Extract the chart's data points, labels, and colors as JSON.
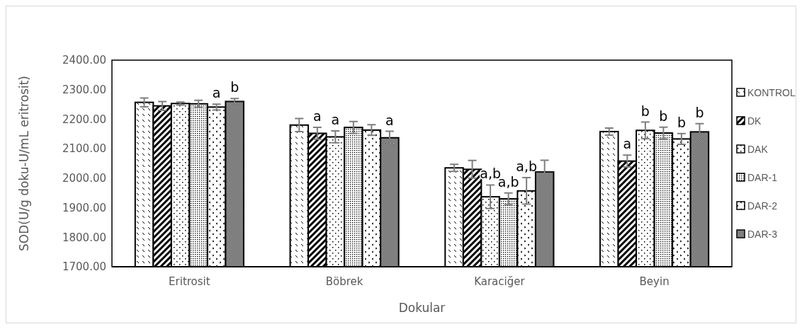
{
  "chart_data": {
    "type": "bar",
    "xlabel": "Dokular",
    "ylabel": "SOD(U/g doku-U/mL eritrosit)",
    "categories": [
      "Eritrosit",
      "Böbrek",
      "Karaciğer",
      "Beyin"
    ],
    "ylim": [
      1700,
      2400
    ],
    "yticks": [
      {
        "value": 1700,
        "label": "1700.00"
      },
      {
        "value": 1800,
        "label": "1800.00"
      },
      {
        "value": 1900,
        "label": "1900.00"
      },
      {
        "value": 2000,
        "label": "2000.00"
      },
      {
        "value": 2100,
        "label": "2100.00"
      },
      {
        "value": 2200,
        "label": "2200.00"
      },
      {
        "value": 2300,
        "label": "2300.00"
      },
      {
        "value": 2400,
        "label": "2400.00"
      }
    ],
    "grid": false,
    "legend": "right",
    "series": [
      {
        "name": "KONTROL",
        "color": "#000000",
        "values": [
          2257,
          2180,
          2035,
          2158
        ],
        "errors": [
          15,
          22,
          12,
          12
        ],
        "value_labels": [
          null,
          null,
          null,
          null
        ]
      },
      {
        "name": "DK",
        "color": "#000000",
        "values": [
          2245,
          2152,
          2030,
          2058
        ],
        "errors": [
          15,
          20,
          30,
          20
        ],
        "value_labels": [
          null,
          "a",
          null,
          "a"
        ]
      },
      {
        "name": "DAK",
        "color": "#000000",
        "values": [
          2253,
          2140,
          1937,
          2162
        ],
        "errors": [
          5,
          20,
          40,
          28
        ],
        "value_labels": [
          null,
          "a",
          "a,b",
          "b"
        ]
      },
      {
        "name": "DAR-1",
        "color": "#000000",
        "values": [
          2252,
          2172,
          1930,
          2153
        ],
        "errors": [
          12,
          20,
          20,
          20
        ],
        "value_labels": [
          null,
          null,
          "a,b",
          "b"
        ]
      },
      {
        "name": "DAR-2",
        "color": "#000000",
        "values": [
          2241,
          2163,
          1957,
          2133
        ],
        "errors": [
          10,
          18,
          45,
          18
        ],
        "value_labels": [
          "a",
          null,
          "a,b",
          "b"
        ]
      },
      {
        "name": "DAR-3",
        "color": "#000000",
        "values": [
          2260,
          2137,
          2021,
          2157
        ],
        "errors": [
          10,
          22,
          40,
          28
        ],
        "value_labels": [
          "b",
          "a",
          null,
          "b"
        ]
      }
    ]
  }
}
